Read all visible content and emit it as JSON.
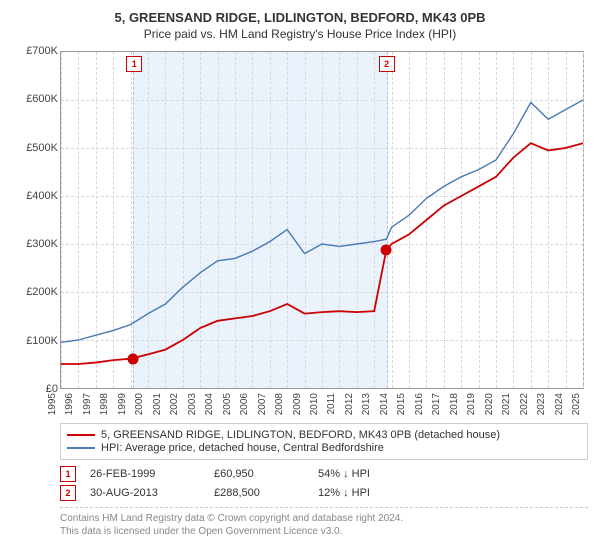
{
  "title": "5, GREENSAND RIDGE, LIDLINGTON, BEDFORD, MK43 0PB",
  "subtitle": "Price paid vs. HM Land Registry's House Price Index (HPI)",
  "chart": {
    "type": "line",
    "background_color": "#ffffff",
    "grid_color": "#d8d8d8",
    "shade_color": "#eaf2fb",
    "shade_border_color": "#a9c7e8",
    "ylim": [
      0,
      700000
    ],
    "ytick_step": 100000,
    "yticklabels": [
      "£0",
      "£100K",
      "£200K",
      "£300K",
      "£400K",
      "£500K",
      "£600K",
      "£700K"
    ],
    "yfontsize": 11,
    "x_years": [
      1995,
      1996,
      1997,
      1998,
      1999,
      2000,
      2001,
      2002,
      2003,
      2004,
      2005,
      2006,
      2007,
      2008,
      2009,
      2010,
      2011,
      2012,
      2013,
      2014,
      2015,
      2016,
      2017,
      2018,
      2019,
      2020,
      2021,
      2022,
      2023,
      2024,
      2025
    ],
    "xfontsize": 10,
    "series": [
      {
        "name": "price_paid",
        "label": "5, GREENSAND RIDGE, LIDLINGTON, BEDFORD, MK43 0PB (detached house)",
        "color": "#cc0000",
        "line_width": 1.8,
        "x": [
          1995,
          1996,
          1997,
          1998,
          1999,
          2000,
          2001,
          2002,
          2003,
          2004,
          2005,
          2006,
          2007,
          2008,
          2009,
          2010,
          2011,
          2012,
          2013,
          2013.7,
          2014,
          2015,
          2016,
          2017,
          2018,
          2019,
          2020,
          2021,
          2022,
          2023,
          2024,
          2025
        ],
        "y": [
          50000,
          50000,
          53000,
          58000,
          60950,
          70000,
          80000,
          100000,
          125000,
          140000,
          145000,
          150000,
          160000,
          175000,
          155000,
          158000,
          160000,
          158000,
          160000,
          288500,
          300000,
          320000,
          350000,
          380000,
          400000,
          420000,
          440000,
          480000,
          510000,
          495000,
          500000,
          510000
        ]
      },
      {
        "name": "hpi",
        "label": "HPI: Average price, detached house, Central Bedfordshire",
        "color": "#4a79b6",
        "line_width": 1.4,
        "x": [
          1995,
          1996,
          1997,
          1998,
          1999,
          2000,
          2001,
          2002,
          2003,
          2004,
          2005,
          2006,
          2007,
          2008,
          2009,
          2010,
          2011,
          2012,
          2013,
          2013.7,
          2014,
          2015,
          2016,
          2017,
          2018,
          2019,
          2020,
          2021,
          2022,
          2023,
          2024,
          2025
        ],
        "y": [
          95000,
          100000,
          110000,
          120000,
          132000,
          155000,
          175000,
          210000,
          240000,
          265000,
          270000,
          285000,
          305000,
          330000,
          280000,
          300000,
          295000,
          300000,
          305000,
          310000,
          335000,
          360000,
          395000,
          420000,
          440000,
          455000,
          475000,
          530000,
          595000,
          560000,
          580000,
          600000
        ]
      }
    ],
    "sale_markers": [
      {
        "idx": "1",
        "x_year": 1999.15,
        "y": 60950
      },
      {
        "idx": "2",
        "x_year": 2013.66,
        "y": 288500
      }
    ],
    "shade_x": [
      1999.15,
      2013.66
    ]
  },
  "sale_events": [
    {
      "idx": "1",
      "date": "26-FEB-1999",
      "price": "£60,950",
      "delta_pct": "54%",
      "arrow": "↓",
      "ref": "HPI"
    },
    {
      "idx": "2",
      "date": "30-AUG-2013",
      "price": "£288,500",
      "delta_pct": "12%",
      "arrow": "↓",
      "ref": "HPI"
    }
  ],
  "footer": {
    "line1": "Contains HM Land Registry data © Crown copyright and database right 2024.",
    "line2": "This data is licensed under the Open Government Licence v3.0."
  }
}
